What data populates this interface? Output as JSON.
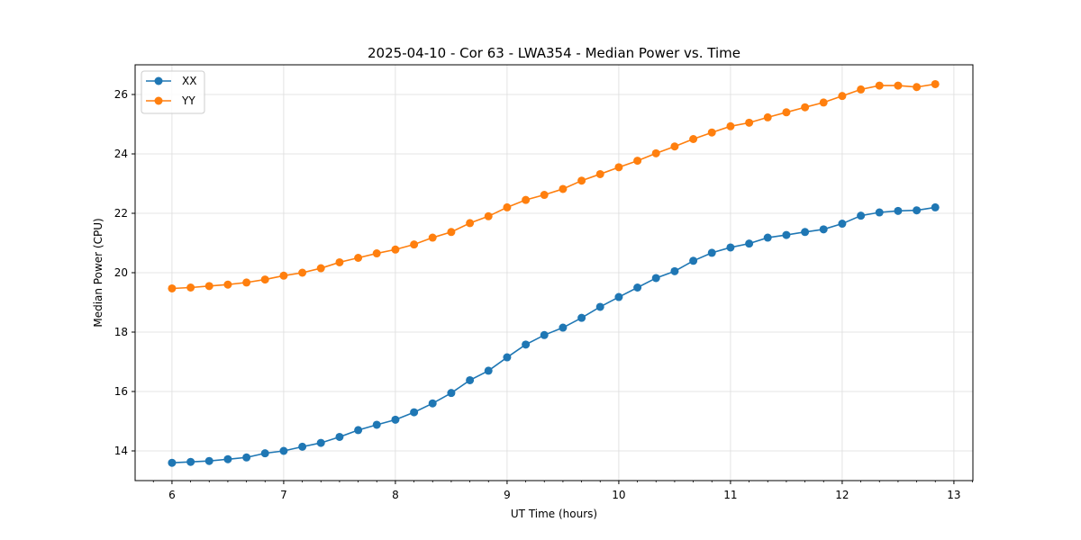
{
  "chart_data": {
    "type": "line",
    "title": "2025-04-10 - Cor 63 - LWA354 - Median Power vs. Time",
    "xlabel": "UT Time (hours)",
    "ylabel": "Median Power (CPU)",
    "xlim": [
      5.67,
      13.17
    ],
    "ylim": [
      13.0,
      27.0
    ],
    "xticks": [
      6,
      7,
      8,
      9,
      10,
      11,
      12,
      13
    ],
    "yticks": [
      14,
      16,
      18,
      20,
      22,
      24,
      26
    ],
    "xticklabels": [
      "6",
      "7",
      "8",
      "9",
      "10",
      "11",
      "12",
      "13"
    ],
    "yticklabels": [
      "14",
      "16",
      "18",
      "20",
      "22",
      "24",
      "26"
    ],
    "grid": true,
    "legend_position": "top-left",
    "x": [
      6.0,
      6.167,
      6.333,
      6.5,
      6.667,
      6.833,
      7.0,
      7.167,
      7.333,
      7.5,
      7.667,
      7.833,
      8.0,
      8.167,
      8.333,
      8.5,
      8.667,
      8.833,
      9.0,
      9.167,
      9.333,
      9.5,
      9.667,
      9.833,
      10.0,
      10.167,
      10.333,
      10.5,
      10.667,
      10.833,
      11.0,
      11.167,
      11.333,
      11.5,
      11.667,
      11.833,
      12.0,
      12.167,
      12.333,
      12.5,
      12.667,
      12.833
    ],
    "series": [
      {
        "name": "XX",
        "color": "#1f77b4",
        "values": [
          13.6,
          13.63,
          13.66,
          13.72,
          13.78,
          13.92,
          14.0,
          14.14,
          14.27,
          14.47,
          14.7,
          14.88,
          15.05,
          15.3,
          15.6,
          15.95,
          16.38,
          16.7,
          17.15,
          17.58,
          17.9,
          18.15,
          18.48,
          18.85,
          19.18,
          19.5,
          19.82,
          20.05,
          20.4,
          20.67,
          20.85,
          20.98,
          21.18,
          21.27,
          21.37,
          21.46,
          21.65,
          21.92,
          22.03,
          22.08,
          22.1,
          22.2
        ]
      },
      {
        "name": "YY",
        "color": "#ff7f0e",
        "values": [
          19.47,
          19.5,
          19.55,
          19.6,
          19.67,
          19.77,
          19.9,
          20.0,
          20.15,
          20.35,
          20.5,
          20.65,
          20.78,
          20.95,
          21.18,
          21.37,
          21.67,
          21.9,
          22.2,
          22.45,
          22.62,
          22.82,
          23.1,
          23.32,
          23.55,
          23.77,
          24.02,
          24.25,
          24.5,
          24.72,
          24.93,
          25.05,
          25.23,
          25.4,
          25.57,
          25.73,
          25.95,
          26.17,
          26.3,
          26.3,
          26.25,
          26.35
        ]
      }
    ]
  }
}
